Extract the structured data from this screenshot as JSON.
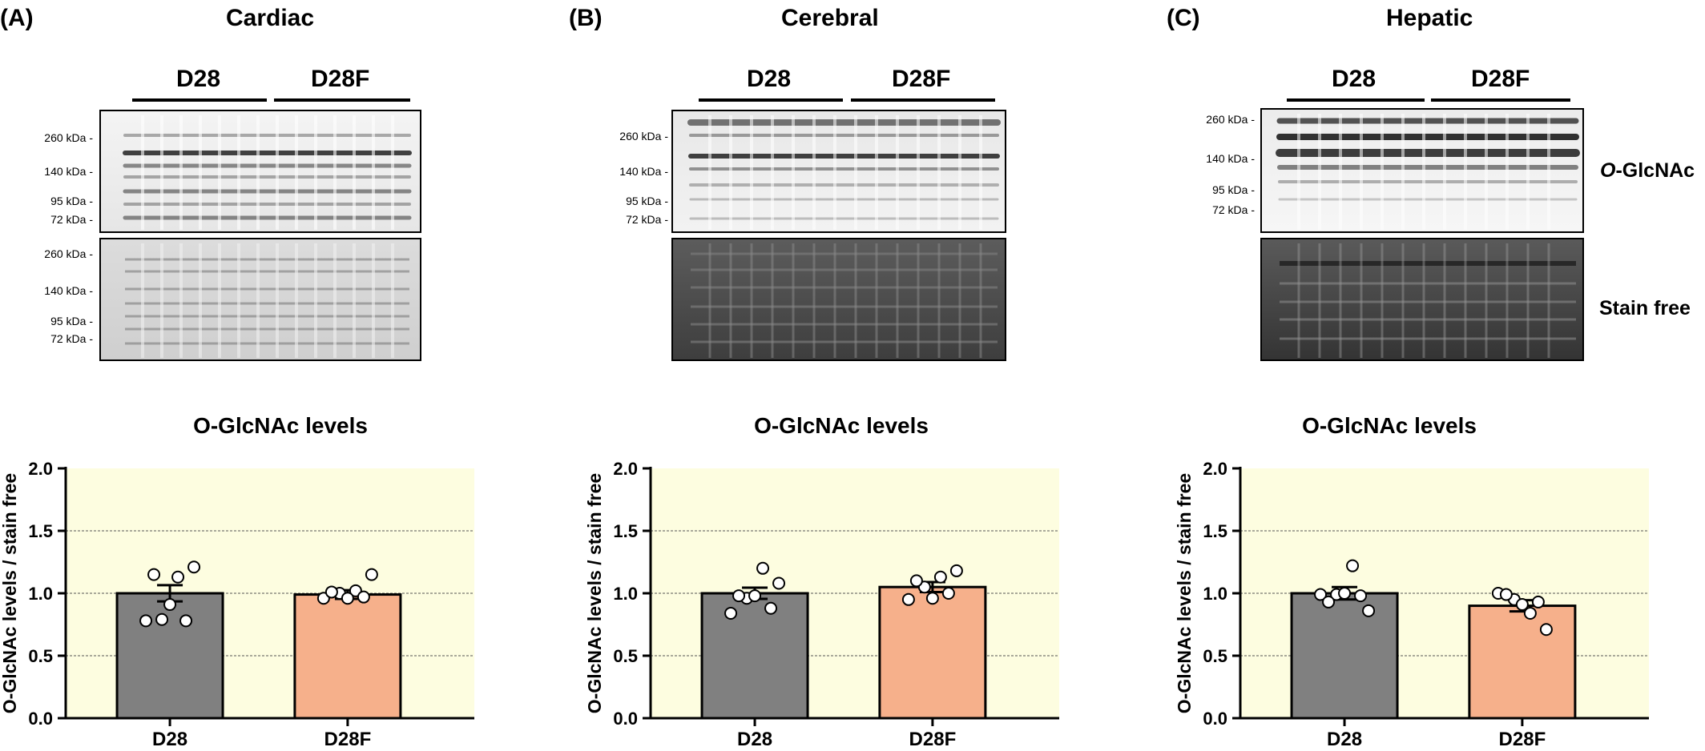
{
  "panels": [
    {
      "letter": "(A)",
      "tissue": "Cardiac",
      "groups": [
        "D28",
        "D28F"
      ],
      "mw_top": [
        "260 kDa -",
        "140 kDa -",
        "95 kDa -",
        "72 kDa -"
      ],
      "mw_bottom": [
        "260 kDa -",
        "140 kDa -",
        "95 kDa -",
        "72 kDa -"
      ]
    },
    {
      "letter": "(B)",
      "tissue": "Cerebral",
      "groups": [
        "D28",
        "D28F"
      ],
      "mw_top": [
        "260 kDa -",
        "140 kDa -",
        "95 kDa -",
        "72 kDa -"
      ]
    },
    {
      "letter": "(C)",
      "tissue": "Hepatic",
      "groups": [
        "D28",
        "D28F"
      ],
      "mw_top": [
        "260 kDa -",
        "140 kDa -",
        "95 kDa -",
        "72 kDa -"
      ],
      "side_top": "-GlcNAc",
      "side_top_italic": "O",
      "side_bottom": "Stain free"
    }
  ],
  "chart_data": [
    {
      "type": "bar",
      "title": "O-GlcNAc levels",
      "ylabel": "O-GlcNAc levels / stain free",
      "categories": [
        "D28",
        "D28F"
      ],
      "values": [
        1.0,
        0.99
      ],
      "sem": [
        0.065,
        0.035
      ],
      "points": [
        [
          0.78,
          0.79,
          1.13,
          1.21,
          1.15,
          0.91,
          0.78
        ],
        [
          0.96,
          1.0,
          1.02,
          1.15,
          1.01,
          0.96,
          0.97
        ]
      ],
      "ylim": [
        0,
        2.0
      ],
      "yticks": [
        "0.0",
        "0.5",
        "1.0",
        "1.5",
        "2.0"
      ],
      "grid": true,
      "colors": [
        "#808080",
        "#f6b08b"
      ],
      "background": "#fdfde0"
    },
    {
      "type": "bar",
      "title": "O-GlcNAc levels",
      "ylabel": "O-GlcNAc levels / stain free",
      "categories": [
        "D28",
        "D28F"
      ],
      "values": [
        1.0,
        1.05
      ],
      "sem": [
        0.045,
        0.04
      ],
      "points": [
        [
          0.84,
          0.96,
          1.2,
          1.08,
          0.98,
          0.98,
          0.88
        ],
        [
          0.95,
          1.05,
          1.13,
          1.18,
          1.1,
          0.96,
          1.0
        ]
      ],
      "ylim": [
        0,
        2.0
      ],
      "yticks": [
        "0.0",
        "0.5",
        "1.0",
        "1.5",
        "2.0"
      ],
      "grid": true,
      "colors": [
        "#808080",
        "#f6b08b"
      ],
      "background": "#fdfde0"
    },
    {
      "type": "bar",
      "title": "O-GlcNAc levels",
      "ylabel": "O-GlcNAc levels / stain free",
      "categories": [
        "D28",
        "D28F"
      ],
      "values": [
        1.0,
        0.9
      ],
      "sem": [
        0.05,
        0.045
      ],
      "points": [
        [
          0.99,
          0.99,
          1.22,
          0.86,
          0.93,
          1.0,
          0.98
        ],
        [
          1.0,
          0.95,
          0.84,
          0.71,
          0.99,
          0.91,
          0.93
        ]
      ],
      "ylim": [
        0,
        2.0
      ],
      "yticks": [
        "0.0",
        "0.5",
        "1.0",
        "1.5",
        "2.0"
      ],
      "grid": true,
      "colors": [
        "#808080",
        "#f6b08b"
      ],
      "background": "#fdfde0"
    }
  ]
}
